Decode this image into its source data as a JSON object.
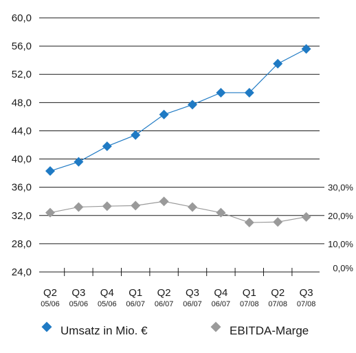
{
  "chart_data": {
    "type": "line",
    "categories": [
      {
        "quarter": "Q2",
        "year": "05/06"
      },
      {
        "quarter": "Q3",
        "year": "05/06"
      },
      {
        "quarter": "Q4",
        "year": "05/06"
      },
      {
        "quarter": "Q1",
        "year": "06/07"
      },
      {
        "quarter": "Q2",
        "year": "06/07"
      },
      {
        "quarter": "Q3",
        "year": "06/07"
      },
      {
        "quarter": "Q4",
        "year": "06/07"
      },
      {
        "quarter": "Q1",
        "year": "07/08"
      },
      {
        "quarter": "Q2",
        "year": "07/08"
      },
      {
        "quarter": "Q3",
        "year": "07/08"
      }
    ],
    "y_left": {
      "min": 24.0,
      "max": 60.0,
      "ticks": [
        "24,0",
        "28,0",
        "32,0",
        "36,0",
        "40,0",
        "44,0",
        "48,0",
        "52,0",
        "56,0",
        "60,0"
      ],
      "tick_values": [
        24,
        28,
        32,
        36,
        40,
        44,
        48,
        52,
        56,
        60
      ]
    },
    "y_right": {
      "min": 0,
      "max": 30,
      "ticks": [
        "0,0%",
        "10,0%",
        "20,0%",
        "30,0%"
      ],
      "tick_values": [
        0,
        10,
        20,
        30
      ]
    },
    "series": [
      {
        "name": "Umsatz in Mio. €",
        "axis": "left",
        "color": "#1f7ac4",
        "values": [
          38.3,
          39.6,
          41.8,
          43.4,
          46.3,
          47.7,
          49.4,
          49.4,
          53.5,
          55.6
        ]
      },
      {
        "name": "EBITDA-Marge",
        "axis": "right",
        "color": "#9a9a9a",
        "values": [
          21.0,
          23.0,
          23.3,
          23.5,
          25.0,
          23.0,
          21.0,
          17.5,
          17.7,
          19.5
        ]
      }
    ],
    "grid": true,
    "legend": "bottom"
  }
}
